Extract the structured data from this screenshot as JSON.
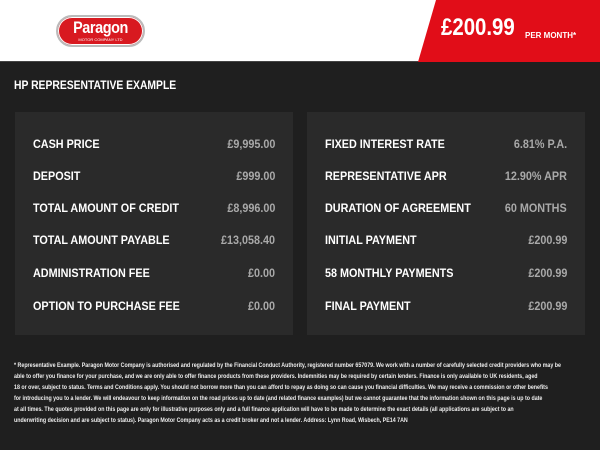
{
  "header": {
    "logo_name": "Paragon",
    "logo_sub": "MOTOR COMPANY LTD",
    "price": "£200.99",
    "per_month": "PER MONTH*"
  },
  "title": "HP REPRESENTATIVE EXAMPLE",
  "left": [
    {
      "label": "CASH PRICE",
      "value": "£9,995.00"
    },
    {
      "label": "DEPOSIT",
      "value": "£999.00"
    },
    {
      "label": "TOTAL AMOUNT OF CREDIT",
      "value": "£8,996.00"
    },
    {
      "label": "TOTAL AMOUNT PAYABLE",
      "value": "£13,058.40"
    },
    {
      "label": "ADMINISTRATION FEE",
      "value": "£0.00"
    },
    {
      "label": "OPTION TO PURCHASE FEE",
      "value": "£0.00"
    }
  ],
  "right": [
    {
      "label": "FIXED INTEREST RATE",
      "value": "6.81% P.A."
    },
    {
      "label": "REPRESENTATIVE APR",
      "value": "12.90% APR"
    },
    {
      "label": "DURATION OF AGREEMENT",
      "value": "60 MONTHS"
    },
    {
      "label": "INITIAL PAYMENT",
      "value": "£200.99"
    },
    {
      "label": "58 MONTHLY PAYMENTS",
      "value": "£200.99"
    },
    {
      "label": "FINAL PAYMENT",
      "value": "£200.99"
    }
  ],
  "footer": [
    "* Representative Example. Paragon Motor Company is authorised and regulated by the Financial Conduct Authority, registered number 657079. We work with a number of carefully selected credit providers who may be",
    "able to offer you finance for your purchase, and we are only able to offer finance products from these providers. Indemnities may be required by certain lenders. Finance is only available to UK residents, aged",
    "18 or over, subject to status. Terms and Conditions apply. You should not borrow more than you can afford to repay as doing so can cause you financial difficulties. We may receive a commission or other benefits",
    "for introducing you to a lender. We will endeavour to keep information on the road prices up to date (and related finance examples) but we cannot guarantee that the information shown on this page is up to date",
    "at all times. The quotes provided on this page are only for illustrative purposes only and a full finance application will have to be made to determine the exact details (all applications are subject to an",
    "underwriting decision and are subject to status). Paragon Motor Company acts as a credit broker and not a lender. Address: Lynn Road, Wisbech, PE14 7AN"
  ]
}
